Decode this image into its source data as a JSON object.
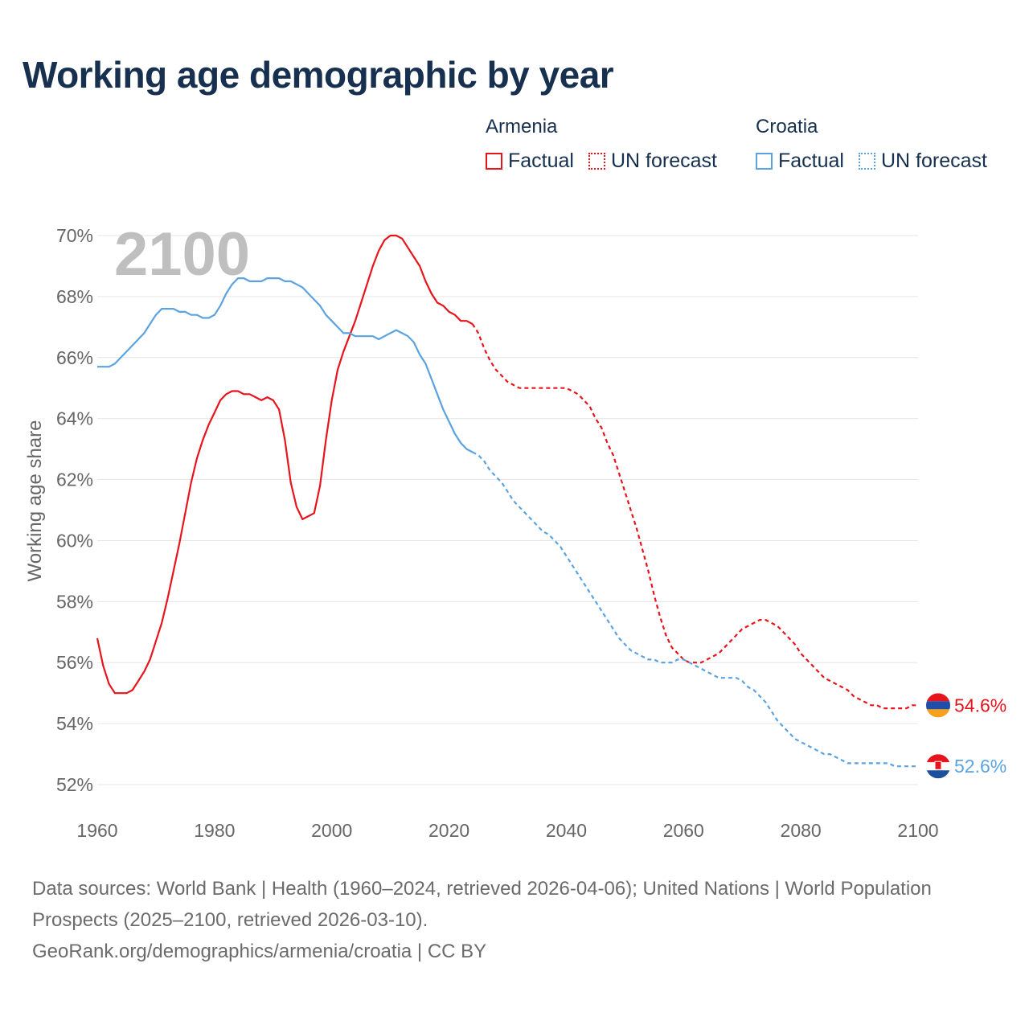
{
  "title": "Working age demographic by year",
  "legend": {
    "groups": [
      {
        "name": "Armenia",
        "color": "#e8141b",
        "factual_label": "Factual",
        "forecast_label": "UN forecast"
      },
      {
        "name": "Croatia",
        "color": "#5ba3e0",
        "factual_label": "Factual",
        "forecast_label": "UN forecast"
      }
    ]
  },
  "year_watermark": "2100",
  "footer": {
    "sources": "Data sources: World Bank | Health (1960–2024, retrieved 2026-04-06); United Nations | World Population Prospects (2025–2100, retrieved 2026-03-10).",
    "credit": "GeoRank.org/demographics/armenia/croatia | CC BY"
  },
  "chart_data": {
    "type": "line",
    "title": "Working age demographic by year",
    "xlabel": "",
    "ylabel": "Working age share",
    "xlim": [
      1960,
      2100
    ],
    "ylim": [
      51.5,
      70.5
    ],
    "x_ticks": [
      1960,
      1980,
      2000,
      2020,
      2040,
      2060,
      2080,
      2100
    ],
    "y_ticks": [
      52,
      54,
      56,
      58,
      60,
      62,
      64,
      66,
      68,
      70
    ],
    "y_tick_labels": [
      "52%",
      "54%",
      "56%",
      "58%",
      "60%",
      "62%",
      "64%",
      "66%",
      "68%",
      "70%"
    ],
    "grid": true,
    "factual_end_year": 2024,
    "series": [
      {
        "name": "Armenia",
        "color": "#e8141b",
        "end_label": "54.6%",
        "flag": "armenia-flag",
        "points": [
          [
            1960,
            56.8
          ],
          [
            1961,
            55.9
          ],
          [
            1962,
            55.3
          ],
          [
            1963,
            55.0
          ],
          [
            1964,
            55.0
          ],
          [
            1965,
            55.0
          ],
          [
            1966,
            55.1
          ],
          [
            1967,
            55.4
          ],
          [
            1968,
            55.7
          ],
          [
            1969,
            56.1
          ],
          [
            1970,
            56.7
          ],
          [
            1971,
            57.3
          ],
          [
            1972,
            58.1
          ],
          [
            1973,
            59.0
          ],
          [
            1974,
            59.9
          ],
          [
            1975,
            60.9
          ],
          [
            1976,
            61.9
          ],
          [
            1977,
            62.7
          ],
          [
            1978,
            63.3
          ],
          [
            1979,
            63.8
          ],
          [
            1980,
            64.2
          ],
          [
            1981,
            64.6
          ],
          [
            1982,
            64.8
          ],
          [
            1983,
            64.9
          ],
          [
            1984,
            64.9
          ],
          [
            1985,
            64.8
          ],
          [
            1986,
            64.8
          ],
          [
            1987,
            64.7
          ],
          [
            1988,
            64.6
          ],
          [
            1989,
            64.7
          ],
          [
            1990,
            64.6
          ],
          [
            1991,
            64.3
          ],
          [
            1992,
            63.3
          ],
          [
            1993,
            61.9
          ],
          [
            1994,
            61.1
          ],
          [
            1995,
            60.7
          ],
          [
            1996,
            60.8
          ],
          [
            1997,
            60.9
          ],
          [
            1998,
            61.8
          ],
          [
            1999,
            63.3
          ],
          [
            2000,
            64.6
          ],
          [
            2001,
            65.6
          ],
          [
            2002,
            66.2
          ],
          [
            2003,
            66.7
          ],
          [
            2004,
            67.2
          ],
          [
            2005,
            67.8
          ],
          [
            2006,
            68.4
          ],
          [
            2007,
            69.0
          ],
          [
            2008,
            69.5
          ],
          [
            2009,
            69.85
          ],
          [
            2010,
            70.0
          ],
          [
            2011,
            70.0
          ],
          [
            2012,
            69.9
          ],
          [
            2013,
            69.6
          ],
          [
            2014,
            69.3
          ],
          [
            2015,
            69.0
          ],
          [
            2016,
            68.5
          ],
          [
            2017,
            68.1
          ],
          [
            2018,
            67.8
          ],
          [
            2019,
            67.7
          ],
          [
            2020,
            67.5
          ],
          [
            2021,
            67.4
          ],
          [
            2022,
            67.2
          ],
          [
            2023,
            67.2
          ],
          [
            2024,
            67.1
          ],
          [
            2025,
            66.8
          ],
          [
            2026,
            66.3
          ],
          [
            2027,
            65.9
          ],
          [
            2028,
            65.6
          ],
          [
            2029,
            65.4
          ],
          [
            2030,
            65.2
          ],
          [
            2031,
            65.1
          ],
          [
            2032,
            65.0
          ],
          [
            2034,
            65.0
          ],
          [
            2036,
            65.0
          ],
          [
            2038,
            65.0
          ],
          [
            2040,
            65.0
          ],
          [
            2041,
            64.9
          ],
          [
            2042,
            64.8
          ],
          [
            2043,
            64.6
          ],
          [
            2044,
            64.4
          ],
          [
            2045,
            64.0
          ],
          [
            2046,
            63.7
          ],
          [
            2047,
            63.2
          ],
          [
            2048,
            62.8
          ],
          [
            2049,
            62.2
          ],
          [
            2050,
            61.6
          ],
          [
            2051,
            61.0
          ],
          [
            2052,
            60.4
          ],
          [
            2053,
            59.7
          ],
          [
            2054,
            59.0
          ],
          [
            2055,
            58.2
          ],
          [
            2056,
            57.5
          ],
          [
            2057,
            56.9
          ],
          [
            2058,
            56.5
          ],
          [
            2059,
            56.3
          ],
          [
            2060,
            56.1
          ],
          [
            2061,
            56.0
          ],
          [
            2062,
            56.0
          ],
          [
            2063,
            56.0
          ],
          [
            2064,
            56.1
          ],
          [
            2065,
            56.2
          ],
          [
            2066,
            56.3
          ],
          [
            2067,
            56.5
          ],
          [
            2068,
            56.7
          ],
          [
            2069,
            56.9
          ],
          [
            2070,
            57.1
          ],
          [
            2071,
            57.2
          ],
          [
            2072,
            57.3
          ],
          [
            2073,
            57.4
          ],
          [
            2074,
            57.4
          ],
          [
            2075,
            57.3
          ],
          [
            2076,
            57.2
          ],
          [
            2077,
            57.0
          ],
          [
            2078,
            56.8
          ],
          [
            2079,
            56.6
          ],
          [
            2080,
            56.3
          ],
          [
            2081,
            56.1
          ],
          [
            2082,
            55.9
          ],
          [
            2083,
            55.7
          ],
          [
            2084,
            55.5
          ],
          [
            2085,
            55.4
          ],
          [
            2086,
            55.3
          ],
          [
            2087,
            55.2
          ],
          [
            2088,
            55.1
          ],
          [
            2089,
            54.9
          ],
          [
            2090,
            54.8
          ],
          [
            2091,
            54.7
          ],
          [
            2092,
            54.6
          ],
          [
            2093,
            54.6
          ],
          [
            2094,
            54.5
          ],
          [
            2095,
            54.5
          ],
          [
            2096,
            54.5
          ],
          [
            2097,
            54.5
          ],
          [
            2098,
            54.5
          ],
          [
            2099,
            54.6
          ],
          [
            2100,
            54.6
          ]
        ]
      },
      {
        "name": "Croatia",
        "color": "#5ba3e0",
        "end_label": "52.6%",
        "flag": "croatia-flag",
        "points": [
          [
            1960,
            65.7
          ],
          [
            1961,
            65.7
          ],
          [
            1962,
            65.7
          ],
          [
            1963,
            65.8
          ],
          [
            1964,
            66.0
          ],
          [
            1965,
            66.2
          ],
          [
            1966,
            66.4
          ],
          [
            1967,
            66.6
          ],
          [
            1968,
            66.8
          ],
          [
            1969,
            67.1
          ],
          [
            1970,
            67.4
          ],
          [
            1971,
            67.6
          ],
          [
            1972,
            67.6
          ],
          [
            1973,
            67.6
          ],
          [
            1974,
            67.5
          ],
          [
            1975,
            67.5
          ],
          [
            1976,
            67.4
          ],
          [
            1977,
            67.4
          ],
          [
            1978,
            67.3
          ],
          [
            1979,
            67.3
          ],
          [
            1980,
            67.4
          ],
          [
            1981,
            67.7
          ],
          [
            1982,
            68.1
          ],
          [
            1983,
            68.4
          ],
          [
            1984,
            68.6
          ],
          [
            1985,
            68.6
          ],
          [
            1986,
            68.5
          ],
          [
            1987,
            68.5
          ],
          [
            1988,
            68.5
          ],
          [
            1989,
            68.6
          ],
          [
            1990,
            68.6
          ],
          [
            1991,
            68.6
          ],
          [
            1992,
            68.5
          ],
          [
            1993,
            68.5
          ],
          [
            1994,
            68.4
          ],
          [
            1995,
            68.3
          ],
          [
            1996,
            68.1
          ],
          [
            1997,
            67.9
          ],
          [
            1998,
            67.7
          ],
          [
            1999,
            67.4
          ],
          [
            2000,
            67.2
          ],
          [
            2001,
            67.0
          ],
          [
            2002,
            66.8
          ],
          [
            2003,
            66.8
          ],
          [
            2004,
            66.7
          ],
          [
            2005,
            66.7
          ],
          [
            2006,
            66.7
          ],
          [
            2007,
            66.7
          ],
          [
            2008,
            66.6
          ],
          [
            2009,
            66.7
          ],
          [
            2010,
            66.8
          ],
          [
            2011,
            66.9
          ],
          [
            2012,
            66.8
          ],
          [
            2013,
            66.7
          ],
          [
            2014,
            66.5
          ],
          [
            2015,
            66.1
          ],
          [
            2016,
            65.8
          ],
          [
            2017,
            65.3
          ],
          [
            2018,
            64.8
          ],
          [
            2019,
            64.3
          ],
          [
            2020,
            63.9
          ],
          [
            2021,
            63.5
          ],
          [
            2022,
            63.2
          ],
          [
            2023,
            63.0
          ],
          [
            2024,
            62.9
          ],
          [
            2025,
            62.8
          ],
          [
            2026,
            62.6
          ],
          [
            2027,
            62.3
          ],
          [
            2028,
            62.1
          ],
          [
            2029,
            61.9
          ],
          [
            2030,
            61.6
          ],
          [
            2031,
            61.3
          ],
          [
            2032,
            61.1
          ],
          [
            2033,
            60.9
          ],
          [
            2034,
            60.7
          ],
          [
            2035,
            60.5
          ],
          [
            2036,
            60.3
          ],
          [
            2037,
            60.2
          ],
          [
            2038,
            60.0
          ],
          [
            2039,
            59.8
          ],
          [
            2040,
            59.5
          ],
          [
            2041,
            59.2
          ],
          [
            2042,
            58.9
          ],
          [
            2043,
            58.6
          ],
          [
            2044,
            58.3
          ],
          [
            2045,
            58.0
          ],
          [
            2046,
            57.7
          ],
          [
            2047,
            57.4
          ],
          [
            2048,
            57.1
          ],
          [
            2049,
            56.8
          ],
          [
            2050,
            56.6
          ],
          [
            2051,
            56.4
          ],
          [
            2052,
            56.3
          ],
          [
            2053,
            56.2
          ],
          [
            2054,
            56.1
          ],
          [
            2055,
            56.1
          ],
          [
            2056,
            56.0
          ],
          [
            2057,
            56.0
          ],
          [
            2058,
            56.0
          ],
          [
            2059,
            56.1
          ],
          [
            2060,
            56.1
          ],
          [
            2061,
            56.0
          ],
          [
            2062,
            55.9
          ],
          [
            2063,
            55.8
          ],
          [
            2064,
            55.7
          ],
          [
            2065,
            55.6
          ],
          [
            2066,
            55.5
          ],
          [
            2067,
            55.5
          ],
          [
            2068,
            55.5
          ],
          [
            2069,
            55.5
          ],
          [
            2070,
            55.4
          ],
          [
            2071,
            55.2
          ],
          [
            2072,
            55.1
          ],
          [
            2073,
            54.9
          ],
          [
            2074,
            54.7
          ],
          [
            2075,
            54.4
          ],
          [
            2076,
            54.1
          ],
          [
            2077,
            53.9
          ],
          [
            2078,
            53.7
          ],
          [
            2079,
            53.5
          ],
          [
            2080,
            53.4
          ],
          [
            2081,
            53.3
          ],
          [
            2082,
            53.2
          ],
          [
            2083,
            53.1
          ],
          [
            2084,
            53.0
          ],
          [
            2085,
            53.0
          ],
          [
            2086,
            52.9
          ],
          [
            2087,
            52.8
          ],
          [
            2088,
            52.7
          ],
          [
            2089,
            52.7
          ],
          [
            2090,
            52.7
          ],
          [
            2092,
            52.7
          ],
          [
            2094,
            52.7
          ],
          [
            2095,
            52.7
          ],
          [
            2096,
            52.6
          ],
          [
            2098,
            52.6
          ],
          [
            2100,
            52.6
          ]
        ]
      }
    ]
  }
}
